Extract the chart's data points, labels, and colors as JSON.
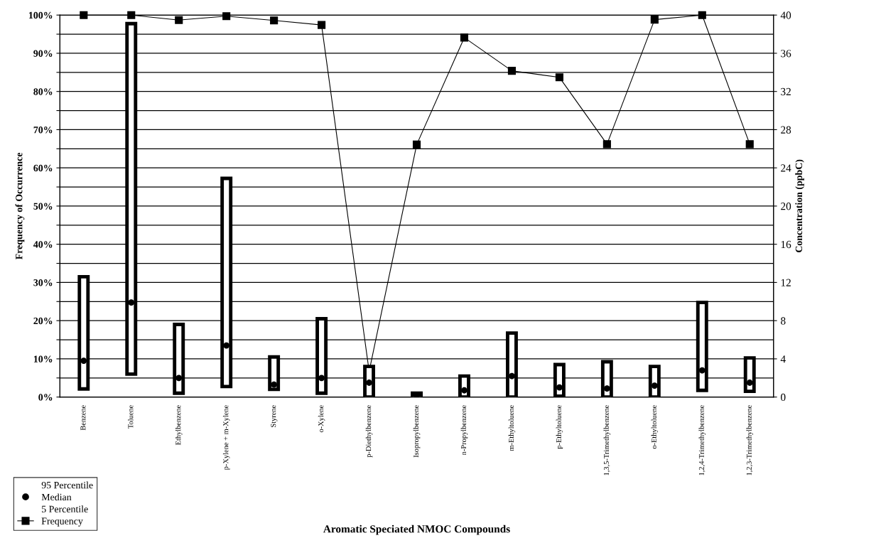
{
  "chart_data": {
    "type": "bar",
    "xlabel": "Aromatic Speciated NMOC Compounds",
    "ylabel": "Frequency of Occurrence",
    "y2label": "Concentration (ppbC)",
    "categories": [
      "Benzene",
      "Toluene",
      "Ethylbenzene",
      "p-Xylene + m-Xylene",
      "Styrene",
      "o-Xylene",
      "p-Diethylbenzene",
      "Isopropylbenzene",
      "n-Propylbenzene",
      "m-Ethyltoluene",
      "p-Ethyltoluene",
      "1,3,5-Trimethylbenzene",
      "o-Ethyltoluene",
      "1,2,4-Trimethylbenzene",
      "1,2,3-Trimethylbenzene"
    ],
    "series": [
      {
        "axis": "y2",
        "color": "#000000",
        "base": [
          0.85,
          2.4,
          0.4,
          1.1,
          0.8,
          0.4,
          0,
          0,
          0,
          0,
          0.1,
          0,
          0,
          0.7,
          0.6
        ],
        "values": [
          11.75,
          36.7,
          7.2,
          21.8,
          3.4,
          7.8,
          3.2,
          0.4,
          2.2,
          6.7,
          3.3,
          3.7,
          3.2,
          9.2,
          3.5
        ]
      },
      {
        "type": "scatter",
        "axis": "y2",
        "name": "Median",
        "color": "#000000",
        "marker": "circle",
        "values": [
          3.8,
          9.9,
          2.0,
          5.4,
          1.3,
          2.0,
          1.5,
          0.2,
          0.7,
          2.2,
          1.0,
          0.9,
          1.2,
          2.8,
          1.5
        ]
      },
      {
        "type": "line",
        "name": "Frequency",
        "color": "#000000",
        "marker": "square",
        "line_style": "solid",
        "values": [
          100,
          100,
          98.7,
          99.7,
          98.6,
          97.4,
          6.7,
          66.1,
          94.1,
          85.4,
          83.7,
          66.2,
          98.8,
          100,
          66.2
        ]
      }
    ],
    "annotations": [
      "95 Percentile",
      "5 Percentile"
    ],
    "ylim": [
      0,
      100
    ],
    "yticks": [
      {
        "value": 0,
        "label": "0%"
      },
      {
        "value": 5,
        "label": null
      },
      {
        "value": 10,
        "label": "10%"
      },
      {
        "value": 15,
        "label": null
      },
      {
        "value": 20,
        "label": "20%"
      },
      {
        "value": 25,
        "label": null
      },
      {
        "value": 30,
        "label": "30%"
      },
      {
        "value": 35,
        "label": null
      },
      {
        "value": 40,
        "label": "40%"
      },
      {
        "value": 45,
        "label": null
      },
      {
        "value": 50,
        "label": "50%"
      },
      {
        "value": 55,
        "label": null
      },
      {
        "value": 60,
        "label": "60%"
      },
      {
        "value": 65,
        "label": null
      },
      {
        "value": 70,
        "label": "70%"
      },
      {
        "value": 75,
        "label": null
      },
      {
        "value": 80,
        "label": "80%"
      },
      {
        "value": 85,
        "label": null
      },
      {
        "value": 90,
        "label": "90%"
      },
      {
        "value": 95,
        "label": null
      },
      {
        "value": 100,
        "label": "100%"
      }
    ],
    "y2lim": [
      0,
      40
    ],
    "y2ticks": [
      0,
      4,
      8,
      12,
      16,
      20,
      24,
      28,
      32,
      36,
      40
    ],
    "grid": "y",
    "legend": "bottom left"
  }
}
